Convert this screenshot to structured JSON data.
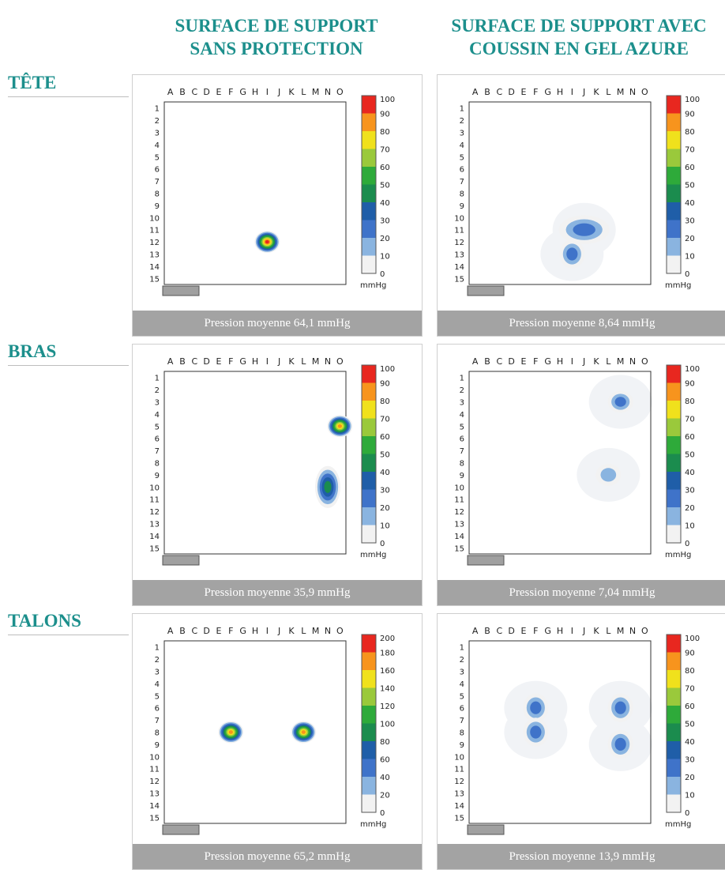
{
  "columns": [
    {
      "line1": "SURFACE DE SUPPORT",
      "line2": "SANS PROTECTION"
    },
    {
      "line1": "SURFACE DE SUPPORT AVEC",
      "line2": "COUSSIN EN GEL AZURE"
    }
  ],
  "rows": [
    "TÊTE",
    "BRAS",
    "TALONS"
  ],
  "chart_data": [
    {
      "type": "heatmap",
      "region": "TÊTE",
      "surface": "SURFACE DE SUPPORT SANS PROTECTION",
      "caption": "Pression moyenne 64,1 mmHg",
      "scale": [
        0,
        10,
        20,
        30,
        40,
        50,
        60,
        70,
        80,
        90,
        100
      ],
      "unit": "mmHg",
      "columns": [
        "A",
        "B",
        "C",
        "D",
        "E",
        "F",
        "G",
        "H",
        "I",
        "J",
        "K",
        "L",
        "M",
        "N",
        "O"
      ],
      "rows_axis": [
        1,
        2,
        3,
        4,
        5,
        6,
        7,
        8,
        9,
        10,
        11,
        12,
        13,
        14,
        15
      ],
      "hotspots": [
        {
          "col": "I",
          "row": 12,
          "peak": 100
        }
      ]
    },
    {
      "type": "heatmap",
      "region": "TÊTE",
      "surface": "SURFACE DE SUPPORT AVEC COUSSIN EN GEL AZURE",
      "caption": "Pression moyenne 8,64 mmHg",
      "scale": [
        0,
        10,
        20,
        30,
        40,
        50,
        60,
        70,
        80,
        90,
        100
      ],
      "unit": "mmHg",
      "columns": [
        "A",
        "B",
        "C",
        "D",
        "E",
        "F",
        "G",
        "H",
        "I",
        "J",
        "K",
        "L",
        "M",
        "N",
        "O"
      ],
      "rows_axis": [
        1,
        2,
        3,
        4,
        5,
        6,
        7,
        8,
        9,
        10,
        11,
        12,
        13,
        14,
        15
      ],
      "hotspots": [
        {
          "col": "J",
          "row": 11,
          "peak": 30
        },
        {
          "col": "I",
          "row": 13,
          "peak": 25
        }
      ]
    },
    {
      "type": "heatmap",
      "region": "BRAS",
      "surface": "SURFACE DE SUPPORT SANS PROTECTION",
      "caption": "Pression moyenne 35,9 mmHg",
      "scale": [
        0,
        10,
        20,
        30,
        40,
        50,
        60,
        70,
        80,
        90,
        100
      ],
      "unit": "mmHg",
      "columns": [
        "A",
        "B",
        "C",
        "D",
        "E",
        "F",
        "G",
        "H",
        "I",
        "J",
        "K",
        "L",
        "M",
        "N",
        "O"
      ],
      "rows_axis": [
        1,
        2,
        3,
        4,
        5,
        6,
        7,
        8,
        9,
        10,
        11,
        12,
        13,
        14,
        15
      ],
      "hotspots": [
        {
          "col": "O",
          "row": 5,
          "peak": 90
        },
        {
          "col": "N",
          "row": 10,
          "peak": 45
        }
      ]
    },
    {
      "type": "heatmap",
      "region": "BRAS",
      "surface": "SURFACE DE SUPPORT AVEC COUSSIN EN GEL AZURE",
      "caption": "Pression moyenne 7,04 mmHg",
      "scale": [
        0,
        10,
        20,
        30,
        40,
        50,
        60,
        70,
        80,
        90,
        100
      ],
      "unit": "mmHg",
      "columns": [
        "A",
        "B",
        "C",
        "D",
        "E",
        "F",
        "G",
        "H",
        "I",
        "J",
        "K",
        "L",
        "M",
        "N",
        "O"
      ],
      "rows_axis": [
        1,
        2,
        3,
        4,
        5,
        6,
        7,
        8,
        9,
        10,
        11,
        12,
        13,
        14,
        15
      ],
      "hotspots": [
        {
          "col": "M",
          "row": 3,
          "peak": 25
        },
        {
          "col": "L",
          "row": 9,
          "peak": 20
        }
      ]
    },
    {
      "type": "heatmap",
      "region": "TALONS",
      "surface": "SURFACE DE SUPPORT SANS PROTECTION",
      "caption": "Pression moyenne 65,2 mmHg",
      "scale": [
        0,
        20,
        40,
        60,
        80,
        100,
        120,
        140,
        160,
        180,
        200
      ],
      "unit": "mmHg",
      "columns": [
        "A",
        "B",
        "C",
        "D",
        "E",
        "F",
        "G",
        "H",
        "I",
        "J",
        "K",
        "L",
        "M",
        "N",
        "O"
      ],
      "rows_axis": [
        1,
        2,
        3,
        4,
        5,
        6,
        7,
        8,
        9,
        10,
        11,
        12,
        13,
        14,
        15
      ],
      "hotspots": [
        {
          "col": "F",
          "row": 8,
          "peak": 180
        },
        {
          "col": "L",
          "row": 8,
          "peak": 180
        }
      ]
    },
    {
      "type": "heatmap",
      "region": "TALONS",
      "surface": "SURFACE DE SUPPORT AVEC COUSSIN EN GEL AZURE",
      "caption": "Pression moyenne 13,9 mmHg",
      "scale": [
        0,
        10,
        20,
        30,
        40,
        50,
        60,
        70,
        80,
        90,
        100
      ],
      "unit": "mmHg",
      "columns": [
        "A",
        "B",
        "C",
        "D",
        "E",
        "F",
        "G",
        "H",
        "I",
        "J",
        "K",
        "L",
        "M",
        "N",
        "O"
      ],
      "rows_axis": [
        1,
        2,
        3,
        4,
        5,
        6,
        7,
        8,
        9,
        10,
        11,
        12,
        13,
        14,
        15
      ],
      "hotspots": [
        {
          "col": "F",
          "row": 6,
          "peak": 30
        },
        {
          "col": "F",
          "row": 8,
          "peak": 25
        },
        {
          "col": "M",
          "row": 6,
          "peak": 30
        },
        {
          "col": "M",
          "row": 9,
          "peak": 25
        }
      ]
    }
  ],
  "colors": {
    "heading": "#1c8f8c",
    "caption_bg": "#a3a3a3",
    "scale_colors": [
      "#f2f2f2",
      "#8ab4e0",
      "#3f73c9",
      "#1f5ea8",
      "#1b8c4e",
      "#2eaa3a",
      "#9ac93b",
      "#f0e11c",
      "#f7941d",
      "#e8271f"
    ]
  }
}
